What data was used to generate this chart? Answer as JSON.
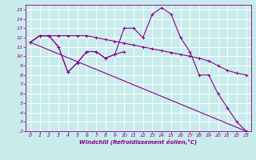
{
  "xlabel": "Windchill (Refroidissement éolien,°C)",
  "bg_color": "#c8ecec",
  "grid_color": "#ffffff",
  "line_color": "#880088",
  "marker": "+",
  "xlim": [
    -0.5,
    23.5
  ],
  "ylim": [
    2,
    15.5
  ],
  "xticks": [
    0,
    1,
    2,
    3,
    4,
    5,
    6,
    7,
    8,
    9,
    10,
    11,
    12,
    13,
    14,
    15,
    16,
    17,
    18,
    19,
    20,
    21,
    22,
    23
  ],
  "yticks": [
    2,
    3,
    4,
    5,
    6,
    7,
    8,
    9,
    10,
    11,
    12,
    13,
    14,
    15
  ],
  "series": [
    {
      "x": [
        0,
        23
      ],
      "y": [
        11.5,
        2.0
      ],
      "marker": false
    },
    {
      "x": [
        0,
        1,
        2,
        3,
        4,
        5,
        6,
        7,
        8,
        9,
        10,
        11,
        12,
        13,
        14,
        15,
        16,
        17,
        18,
        19,
        20,
        21,
        22,
        23
      ],
      "y": [
        11.5,
        12.2,
        12.2,
        12.2,
        12.2,
        12.2,
        12.2,
        12.0,
        11.8,
        11.6,
        11.4,
        11.2,
        11.0,
        10.8,
        10.6,
        10.4,
        10.2,
        10.0,
        9.8,
        9.5,
        9.0,
        8.5,
        8.2,
        8.0
      ],
      "marker": true
    },
    {
      "x": [
        0,
        1,
        2,
        3,
        4,
        5,
        6,
        7,
        8,
        9,
        10
      ],
      "y": [
        11.5,
        12.2,
        12.2,
        11.0,
        8.3,
        9.3,
        10.5,
        10.5,
        9.8,
        10.2,
        10.5
      ],
      "marker": true
    },
    {
      "x": [
        0,
        1,
        2,
        3,
        4,
        5,
        6,
        7,
        8,
        9,
        10,
        11,
        12,
        13,
        14,
        15,
        16,
        17,
        18,
        19,
        20,
        21,
        22,
        23
      ],
      "y": [
        11.5,
        12.2,
        12.2,
        11.0,
        8.3,
        9.3,
        10.5,
        10.5,
        9.8,
        10.2,
        13.0,
        13.0,
        12.0,
        14.5,
        15.2,
        14.5,
        12.0,
        10.5,
        8.0,
        8.0,
        6.0,
        4.5,
        3.0,
        2.0
      ],
      "marker": true
    }
  ]
}
